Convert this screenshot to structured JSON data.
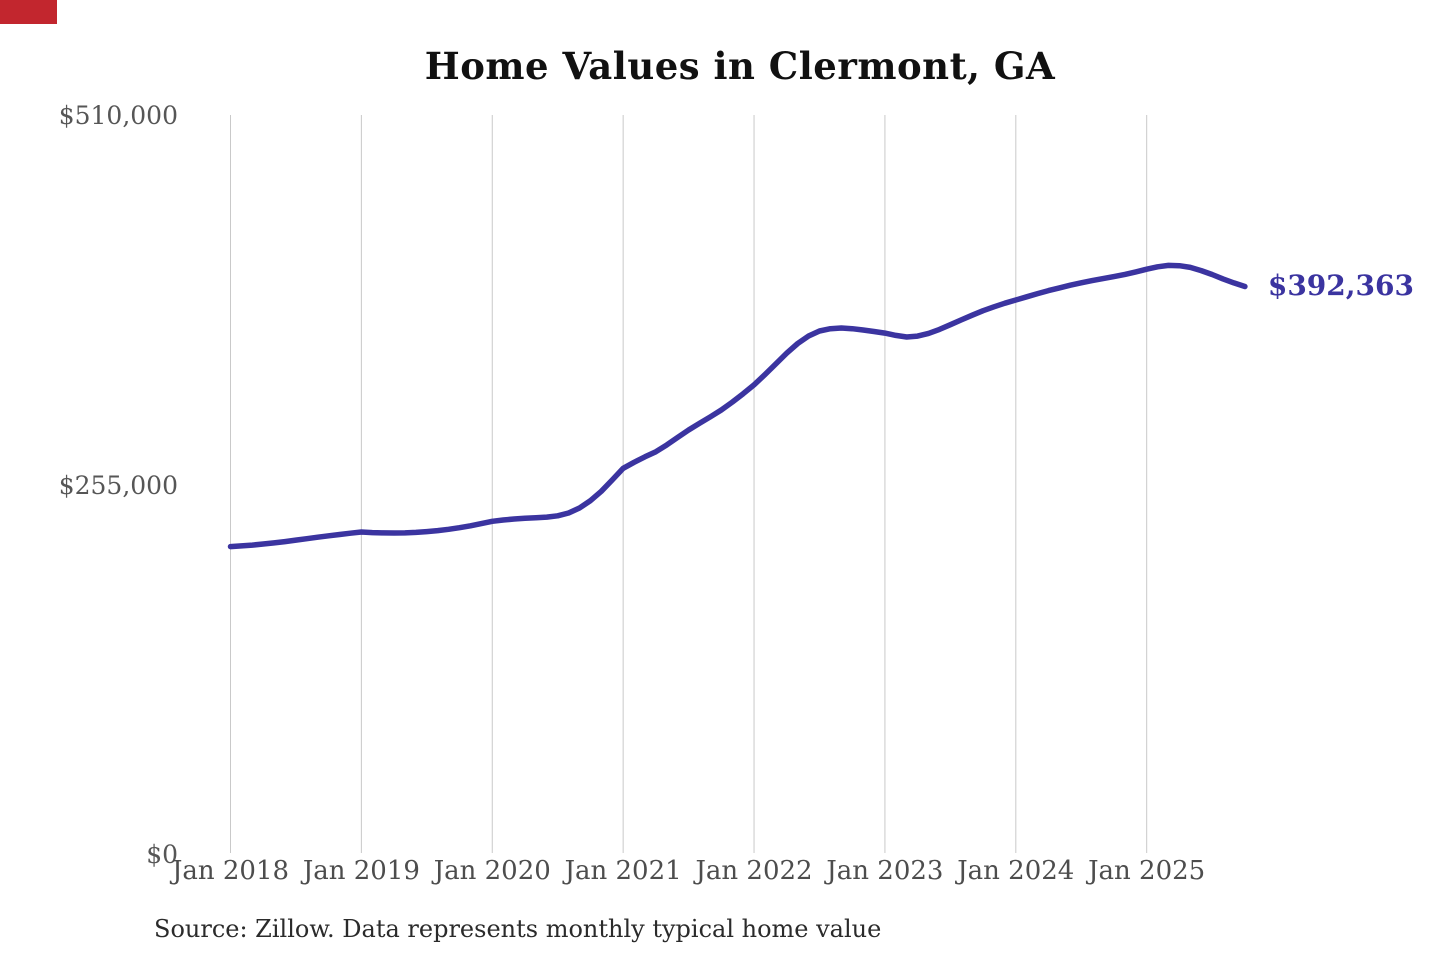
{
  "title": "Home Values in Clermont, GA",
  "end_label": "$392,363",
  "source_note": "Source: Zillow. Data represents monthly typical home value",
  "decoration": {
    "corner_mark_color": "#c2262e"
  },
  "colors": {
    "line": "#3b34a0",
    "end_label": "#3b34a0",
    "gridline": "#c9c9c9"
  },
  "chart_data": {
    "type": "line",
    "title": "Home Values in Clermont, GA",
    "series_name": "Monthly typical home value (Zillow)",
    "x_start": "Jan 2018",
    "x_end": "Oct 2025",
    "x_tick_labels": [
      "Jan 2018",
      "Jan 2019",
      "Jan 2020",
      "Jan 2021",
      "Jan 2022",
      "Jan 2023",
      "Jan 2024",
      "Jan 2025"
    ],
    "x_tick_month_indices": [
      0,
      12,
      24,
      36,
      48,
      60,
      72,
      84
    ],
    "y_ticks": [
      {
        "label": "$0",
        "value": 0
      },
      {
        "label": "$255,000",
        "value": 255000
      },
      {
        "label": "$510,000",
        "value": 510000
      }
    ],
    "ylim": [
      0,
      510000
    ],
    "grid": "vertical-only",
    "legend": "none",
    "last_value": 392363,
    "last_value_label": "$392,363",
    "values_monthly": [
      212800,
      213300,
      213900,
      214600,
      215400,
      216300,
      217300,
      218300,
      219300,
      220300,
      221200,
      222100,
      222900,
      222500,
      222300,
      222200,
      222300,
      222600,
      223200,
      223900,
      224800,
      225900,
      227200,
      228700,
      230300,
      231200,
      231900,
      232400,
      232800,
      233200,
      234100,
      236000,
      239500,
      244500,
      251000,
      258800,
      266900,
      271000,
      274800,
      278300,
      283000,
      288200,
      293300,
      297900,
      302400,
      307100,
      312500,
      318300,
      324400,
      331500,
      339000,
      346400,
      353000,
      358200,
      361600,
      363200,
      363700,
      363200,
      362300,
      361300,
      360200,
      358600,
      357500,
      358100,
      360000,
      362700,
      366000,
      369300,
      372500,
      375600,
      378300,
      380800,
      383000,
      385200,
      387400,
      389500,
      391400,
      393200,
      394900,
      396400,
      397800,
      399200,
      400700,
      402400,
      404300,
      405900,
      406900,
      406700,
      405500,
      403300,
      400600,
      397600,
      394800,
      392363
    ]
  }
}
